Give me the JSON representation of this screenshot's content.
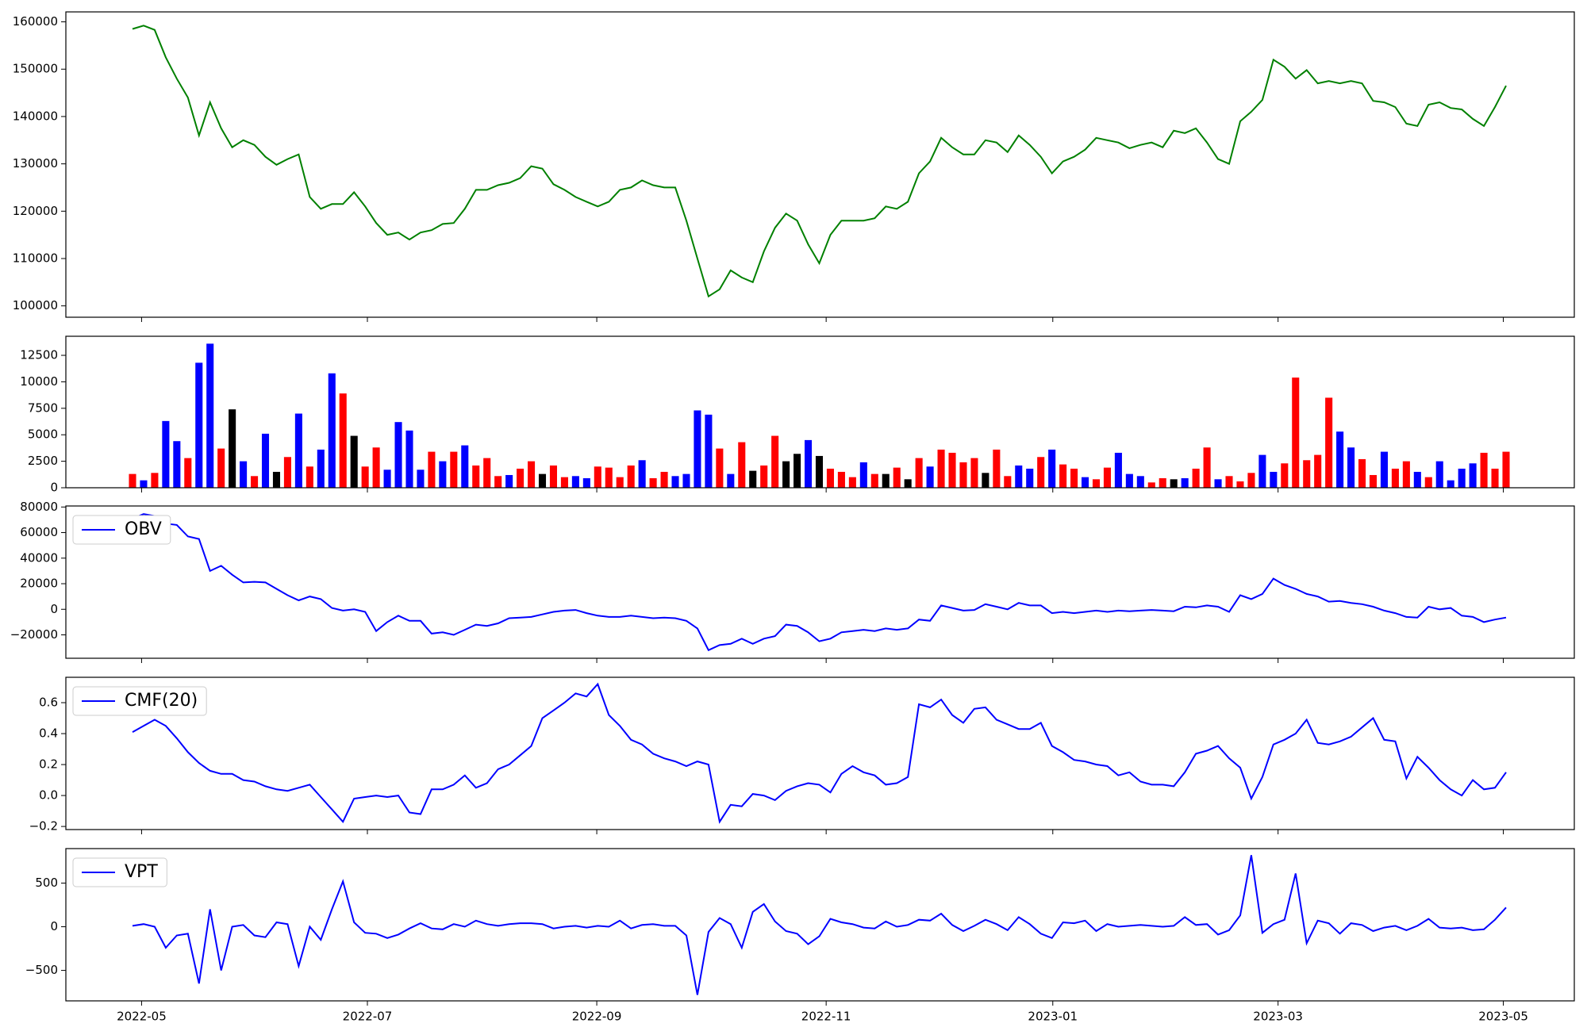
{
  "chart_data": [
    {
      "type": "line",
      "ylim": [
        97600,
        162100
      ],
      "yticks": [
        100000,
        110000,
        120000,
        130000,
        140000,
        150000,
        160000
      ],
      "series": [
        {
          "color": "green",
          "values": [
            158500,
            159200,
            158300,
            152500,
            148000,
            144000,
            136000,
            143000,
            137500,
            133500,
            135000,
            134000,
            131500,
            129800,
            131000,
            132000,
            123000,
            120500,
            121500,
            121500,
            124000,
            121000,
            117500,
            115000,
            115500,
            114000,
            115500,
            116000,
            117300,
            117500,
            120500,
            124500,
            124500,
            125500,
            126000,
            127000,
            129500,
            129000,
            125700,
            124500,
            123000,
            122000,
            121000,
            122000,
            124500,
            125000,
            126500,
            125500,
            125000,
            125000,
            118000,
            110000,
            102000,
            103500,
            107500,
            106000,
            105000,
            111500,
            116500,
            119500,
            118000,
            113000,
            109000,
            115000,
            118000,
            118000,
            118000,
            118500,
            121000,
            120500,
            122000,
            128000,
            130500,
            135500,
            133500,
            132000,
            132000,
            135000,
            134500,
            132500,
            136000,
            134000,
            131500,
            128000,
            130500,
            131500,
            133000,
            135500,
            135000,
            134500,
            133300,
            134000,
            134500,
            133500,
            137000,
            136500,
            137500,
            134500,
            131000,
            130000,
            139000,
            141000,
            143500,
            152000,
            150500,
            148000,
            149800,
            147000,
            147500,
            147000,
            147500,
            147000,
            143300,
            143000,
            142000,
            138500,
            138000,
            142500,
            143000,
            141800,
            141500,
            139500,
            138000,
            142000,
            146500
          ]
        }
      ]
    },
    {
      "type": "bar",
      "ylim": [
        0,
        14300
      ],
      "yticks": [
        0,
        2500,
        5000,
        7500,
        10000,
        12500
      ],
      "values": [
        1300,
        700,
        1400,
        6300,
        4400,
        2800,
        11800,
        13600,
        3700,
        7400,
        2500,
        1100,
        5100,
        1500,
        2900,
        7000,
        2000,
        3600,
        10800,
        8900,
        4900,
        2000,
        3800,
        1700,
        6200,
        5400,
        1700,
        3400,
        2500,
        3400,
        4000,
        2100,
        2800,
        1100,
        1200,
        1800,
        2500,
        1300,
        2100,
        1000,
        1100,
        900,
        2000,
        1900,
        1000,
        2100,
        2600,
        900,
        1500,
        1100,
        1300,
        7300,
        6900,
        3700,
        1300,
        4300,
        1600,
        2100,
        4900,
        2500,
        3200,
        4500,
        3000,
        1800,
        1500,
        1000,
        2400,
        1300,
        1300,
        1900,
        800,
        2800,
        2000,
        3600,
        3300,
        2400,
        2800,
        1400,
        3600,
        1100,
        2100,
        1800,
        2900,
        3600,
        2200,
        1800,
        1000,
        800,
        1900,
        3300,
        1300,
        1100,
        500,
        900,
        800,
        900,
        1800,
        3800,
        800,
        1100,
        600,
        1400,
        3100,
        1500,
        2300,
        10400,
        2600,
        3100,
        8500,
        5300,
        3800,
        2700,
        1200,
        3400,
        1800,
        2500,
        1500,
        1000,
        2500,
        700,
        1800,
        2300,
        3300,
        1800,
        3400
      ],
      "colors": [
        "red",
        "blue",
        "red",
        "blue",
        "blue",
        "red",
        "blue",
        "blue",
        "red",
        "black",
        "blue",
        "red",
        "blue",
        "black",
        "red",
        "blue",
        "red",
        "blue",
        "blue",
        "red",
        "black",
        "red",
        "red",
        "blue",
        "blue",
        "blue",
        "blue",
        "red",
        "blue",
        "red",
        "blue",
        "red",
        "red",
        "red",
        "blue",
        "red",
        "red",
        "black",
        "red",
        "red",
        "blue",
        "blue",
        "red",
        "red",
        "red",
        "red",
        "blue",
        "red",
        "red",
        "blue",
        "blue",
        "blue",
        "blue",
        "red",
        "blue",
        "red",
        "black",
        "red",
        "red",
        "black",
        "black",
        "blue",
        "black",
        "red",
        "red",
        "red",
        "blue",
        "red",
        "black",
        "red",
        "black",
        "red",
        "blue",
        "red",
        "red",
        "red",
        "red",
        "black",
        "red",
        "red",
        "blue",
        "blue",
        "red",
        "blue",
        "red",
        "red",
        "blue",
        "red",
        "red",
        "blue",
        "blue",
        "blue",
        "red",
        "red",
        "black",
        "blue",
        "red",
        "red",
        "blue",
        "red",
        "red",
        "red",
        "blue",
        "blue",
        "red",
        "red",
        "red",
        "red",
        "red",
        "blue",
        "blue",
        "red",
        "red",
        "blue",
        "red",
        "red",
        "blue",
        "red",
        "blue",
        "blue",
        "blue",
        "blue",
        "red",
        "red",
        "red"
      ]
    },
    {
      "type": "line",
      "ylim": [
        -38300,
        80800
      ],
      "legend": "upper left",
      "yticks": [
        {
          "value": -20000,
          "label": "−20000"
        },
        0,
        20000,
        40000,
        60000,
        80000
      ],
      "series": [
        {
          "name": "OBV",
          "color": "blue",
          "values": [
            71000,
            74500,
            73000,
            67000,
            66000,
            57000,
            55000,
            30000,
            34000,
            27000,
            21000,
            21500,
            21000,
            16000,
            11000,
            7000,
            10000,
            8000,
            1000,
            -1000,
            0,
            -2000,
            -17000,
            -10000,
            -5000,
            -9000,
            -9000,
            -19000,
            -18000,
            -20000,
            -16000,
            -12000,
            -13000,
            -11000,
            -7000,
            -6500,
            -6000,
            -4000,
            -2000,
            -1000,
            -500,
            -3000,
            -5000,
            -6000,
            -6000,
            -5000,
            -6000,
            -7000,
            -6500,
            -7000,
            -9000,
            -15000,
            -32000,
            -28000,
            -27000,
            -23000,
            -27000,
            -23000,
            -21000,
            -12000,
            -13000,
            -18000,
            -25000,
            -23000,
            -18000,
            -17000,
            -16000,
            -17000,
            -15000,
            -16000,
            -15000,
            -8000,
            -9000,
            3000,
            1000,
            -1000,
            -500,
            4000,
            2000,
            0,
            5000,
            3000,
            3000,
            -3000,
            -2000,
            -3000,
            -2000,
            -1000,
            -2000,
            -1000,
            -1500,
            -1000,
            -500,
            -1000,
            -1500,
            2000,
            1500,
            3000,
            2000,
            -2000,
            11000,
            8000,
            12000,
            24000,
            19000,
            16000,
            12000,
            10000,
            6000,
            6500,
            5000,
            4000,
            2000,
            -1000,
            -3000,
            -6000,
            -6500,
            2000,
            0,
            1000,
            -5000,
            -6000,
            -10000,
            -8000,
            -6500
          ]
        }
      ]
    },
    {
      "type": "line",
      "ylim": [
        -0.22,
        0.764
      ],
      "legend": "upper left",
      "yticks": [
        {
          "value": -0.2,
          "label": "−0.2"
        },
        {
          "value": 0,
          "label": "0.0"
        },
        0.2,
        0.4,
        0.6
      ],
      "series": [
        {
          "name": "CMF(20)",
          "color": "blue",
          "values": [
            0.41,
            0.45,
            0.49,
            0.45,
            0.37,
            0.28,
            0.21,
            0.16,
            0.14,
            0.14,
            0.1,
            0.09,
            0.06,
            0.04,
            0.03,
            0.05,
            0.07,
            -0.01,
            -0.09,
            -0.17,
            -0.02,
            -0.01,
            0.0,
            -0.01,
            0.0,
            -0.11,
            -0.12,
            0.04,
            0.04,
            0.07,
            0.13,
            0.05,
            0.08,
            0.17,
            0.2,
            0.26,
            0.32,
            0.5,
            0.55,
            0.6,
            0.66,
            0.64,
            0.72,
            0.52,
            0.45,
            0.36,
            0.33,
            0.27,
            0.24,
            0.22,
            0.19,
            0.22,
            0.2,
            -0.17,
            -0.06,
            -0.07,
            0.01,
            0.0,
            -0.03,
            0.03,
            0.06,
            0.08,
            0.07,
            0.02,
            0.14,
            0.19,
            0.15,
            0.13,
            0.07,
            0.08,
            0.12,
            0.59,
            0.57,
            0.62,
            0.52,
            0.47,
            0.56,
            0.57,
            0.49,
            0.46,
            0.43,
            0.43,
            0.47,
            0.32,
            0.28,
            0.23,
            0.22,
            0.2,
            0.19,
            0.13,
            0.15,
            0.09,
            0.07,
            0.07,
            0.06,
            0.15,
            0.27,
            0.29,
            0.32,
            0.24,
            0.18,
            -0.02,
            0.12,
            0.33,
            0.36,
            0.4,
            0.49,
            0.34,
            0.33,
            0.35,
            0.38,
            0.44,
            0.5,
            0.36,
            0.35,
            0.11,
            0.25,
            0.18,
            0.1,
            0.04,
            0.0,
            0.1,
            0.04,
            0.05,
            0.15
          ]
        }
      ]
    },
    {
      "type": "line",
      "ylim": [
        -849,
        895
      ],
      "legend": "upper left",
      "yticks": [
        {
          "value": -500,
          "label": "−500"
        },
        0,
        500
      ],
      "xticks": [
        "2022-05",
        "2022-07",
        "2022-09",
        "2022-11",
        "2023-01",
        "2023-03",
        "2023-05"
      ],
      "series": [
        {
          "name": "VPT",
          "color": "blue",
          "values": [
            10,
            30,
            0,
            -240,
            -100,
            -80,
            -650,
            200,
            -500,
            0,
            20,
            -100,
            -120,
            50,
            30,
            -450,
            0,
            -150,
            200,
            520,
            50,
            -70,
            -80,
            -130,
            -90,
            -20,
            40,
            -20,
            -30,
            30,
            0,
            70,
            30,
            10,
            30,
            40,
            40,
            30,
            -20,
            0,
            10,
            -10,
            10,
            0,
            70,
            -20,
            20,
            30,
            10,
            10,
            -100,
            -780,
            -60,
            100,
            30,
            -240,
            170,
            260,
            60,
            -50,
            -80,
            -200,
            -110,
            90,
            50,
            30,
            -10,
            -20,
            60,
            0,
            20,
            80,
            70,
            150,
            20,
            -50,
            10,
            80,
            30,
            -40,
            110,
            30,
            -80,
            -130,
            50,
            40,
            70,
            -50,
            30,
            0,
            10,
            20,
            10,
            0,
            10,
            110,
            20,
            30,
            -90,
            -40,
            130,
            820,
            -70,
            30,
            80,
            610,
            -190,
            70,
            40,
            -80,
            40,
            20,
            -50,
            -10,
            10,
            -40,
            10,
            90,
            -10,
            -20,
            -10,
            -40,
            -30,
            80,
            220
          ]
        }
      ]
    }
  ]
}
